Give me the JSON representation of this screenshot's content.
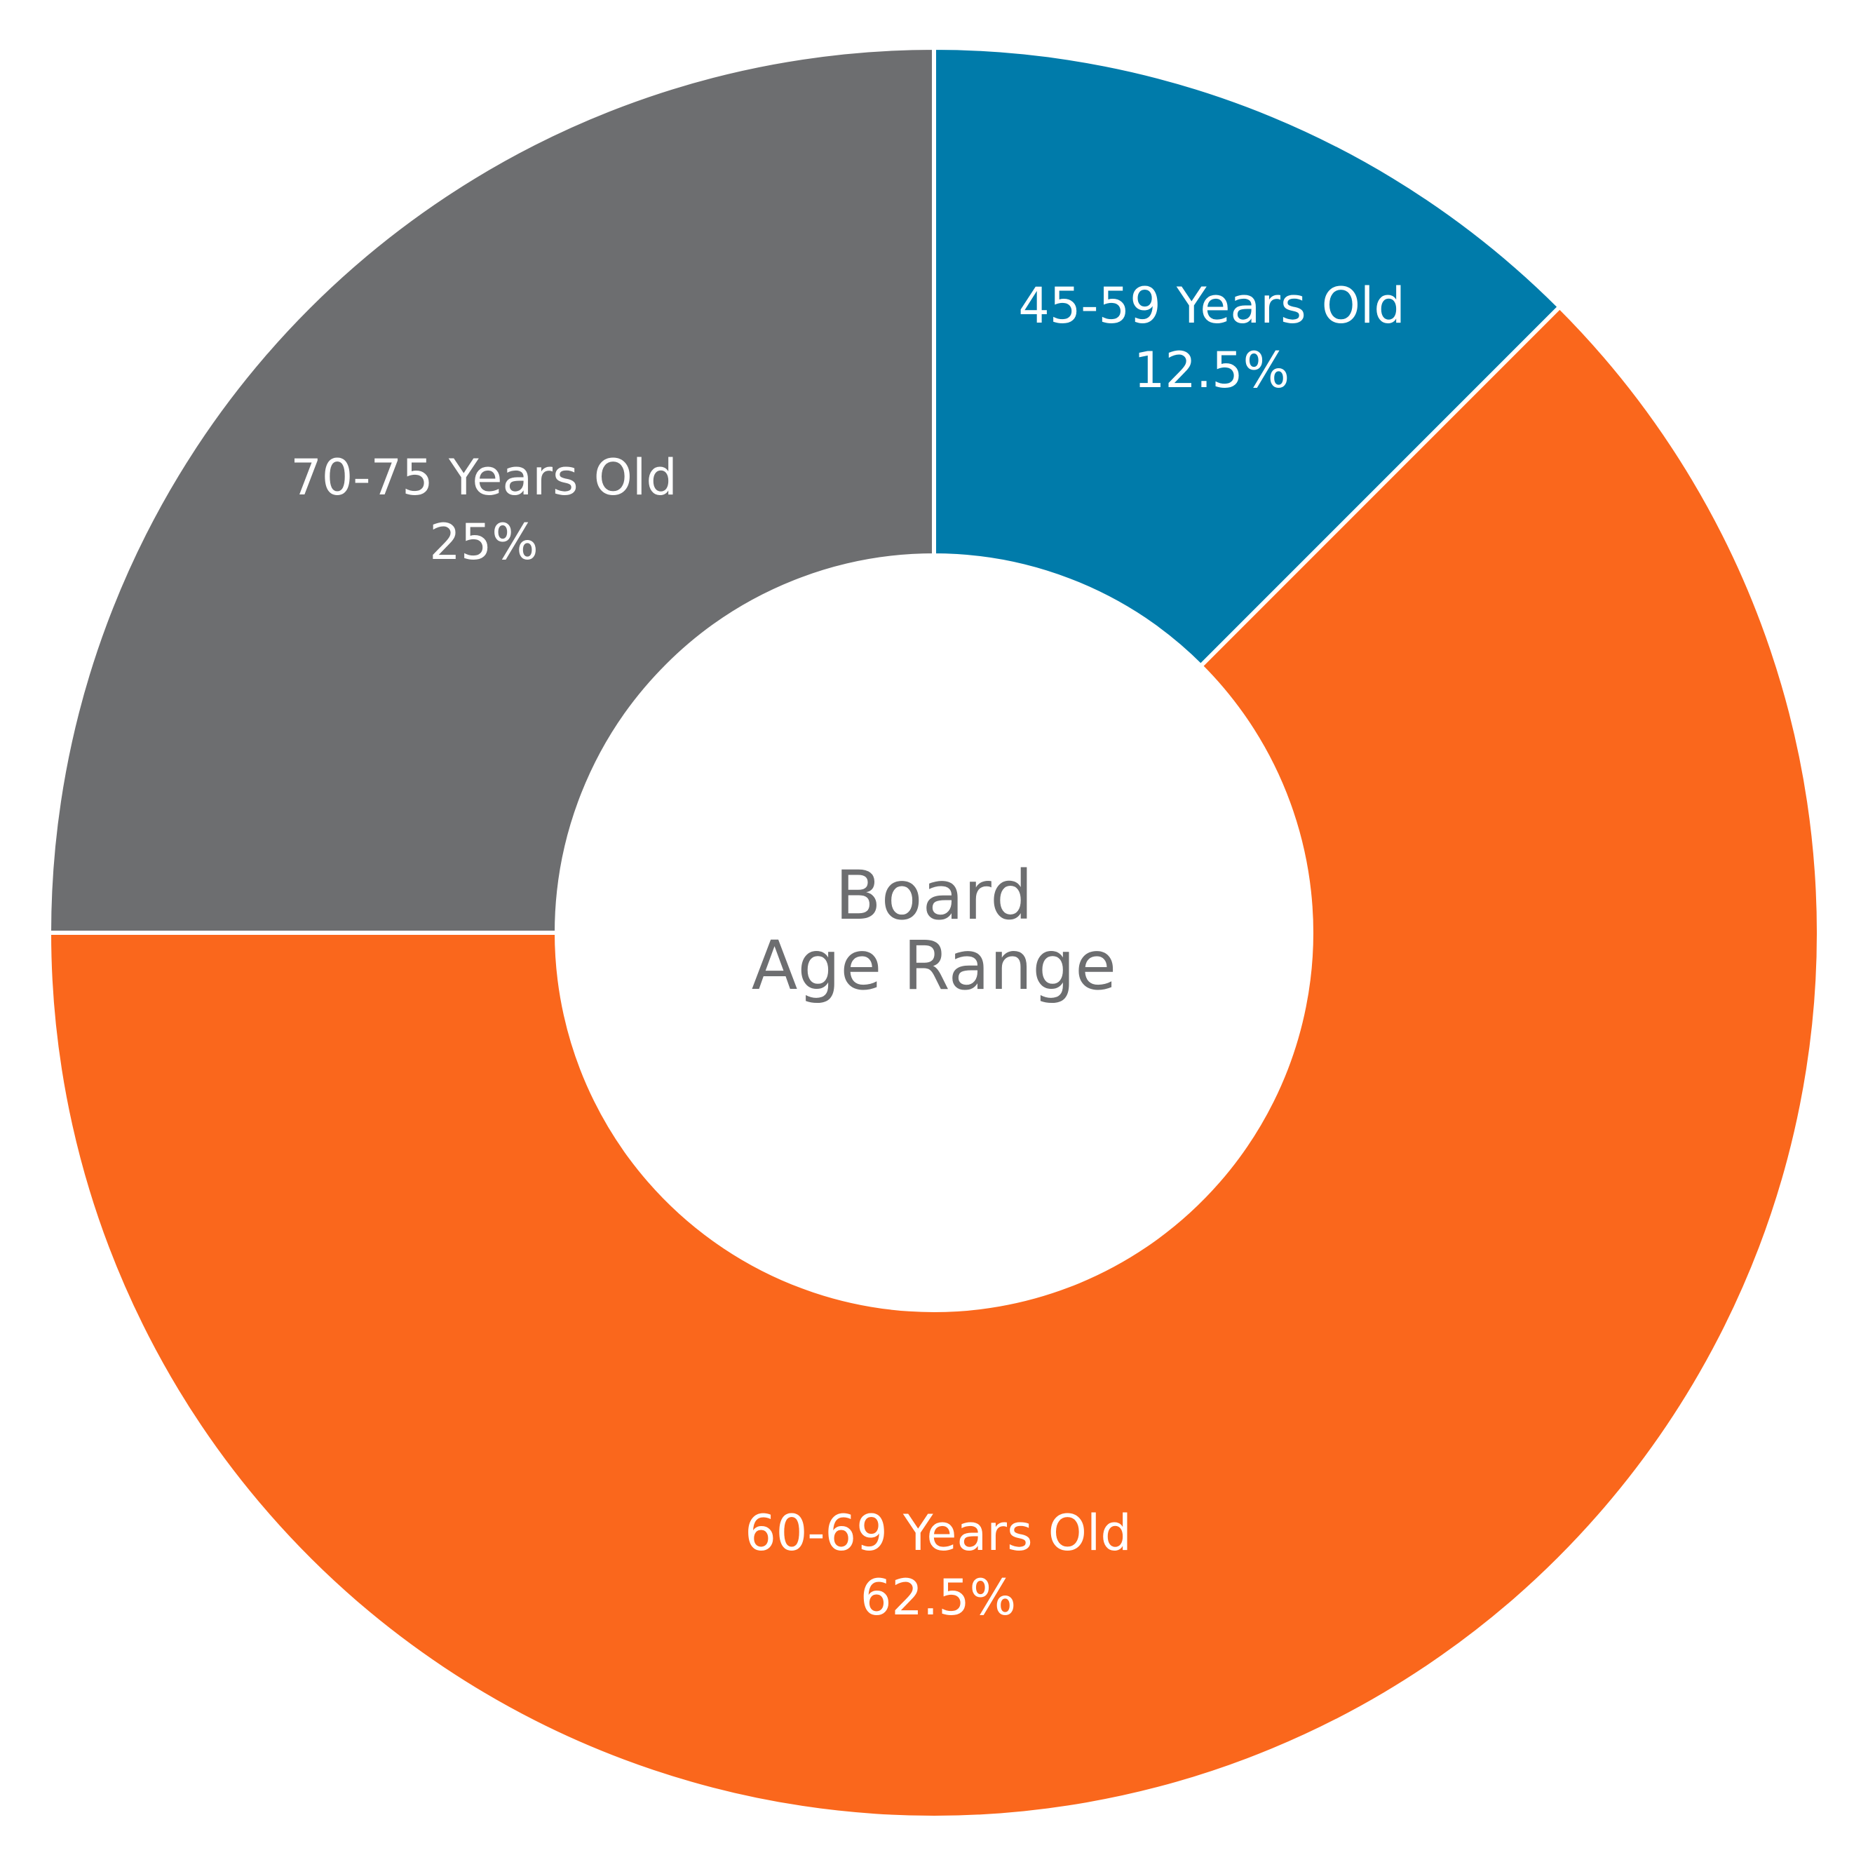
{
  "chart_data": {
    "type": "pie",
    "style": "donut",
    "center_text": [
      "Board",
      "Age Range"
    ],
    "center_text_color": "#6d6e70",
    "separator_color": "#ffffff",
    "slices": [
      {
        "label": "45-59 Years Old",
        "value": 12.5,
        "value_label": "12.5%",
        "color": "#007baa"
      },
      {
        "label": "60-69 Years Old",
        "value": 62.5,
        "value_label": "62.5%",
        "color": "#fa671c"
      },
      {
        "label": "70-75 Years Old",
        "value": 25,
        "value_label": "25%",
        "color": "#6d6e70"
      }
    ]
  }
}
